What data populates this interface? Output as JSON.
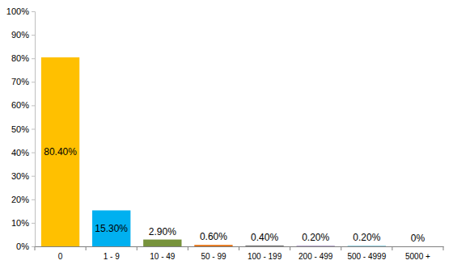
{
  "chart_data": {
    "type": "bar",
    "categories": [
      "0",
      "1 - 9",
      "10 - 49",
      "50 - 99",
      "100 - 199",
      "200 - 499",
      "500 - 4999",
      "5000 +"
    ],
    "values": [
      80.4,
      15.3,
      2.9,
      0.6,
      0.4,
      0.2,
      0.2,
      0
    ],
    "value_labels": [
      "80.40%",
      "15.30%",
      "2.90%",
      "0.60%",
      "0.40%",
      "0.20%",
      "0.20%",
      "0%"
    ],
    "colors": [
      "#ffc000",
      "#00b0f0",
      "#77933c",
      "#e46c0a",
      "#7f7f7f",
      "#8064a2",
      "#4bacc6",
      "#c0504d"
    ],
    "ylim": [
      0,
      100
    ],
    "yticks": [
      {
        "value": 0,
        "label": "0%"
      },
      {
        "value": 10,
        "label": "10%"
      },
      {
        "value": 20,
        "label": "20%"
      },
      {
        "value": 30,
        "label": "30%"
      },
      {
        "value": 40,
        "label": "40%"
      },
      {
        "value": 50,
        "label": "50%"
      },
      {
        "value": 60,
        "label": "60%"
      },
      {
        "value": 70,
        "label": "70%"
      },
      {
        "value": 80,
        "label": "80%"
      },
      {
        "value": 90,
        "label": "90%"
      },
      {
        "value": 100,
        "label": "100%"
      }
    ],
    "grid": false,
    "data_labels": true
  }
}
